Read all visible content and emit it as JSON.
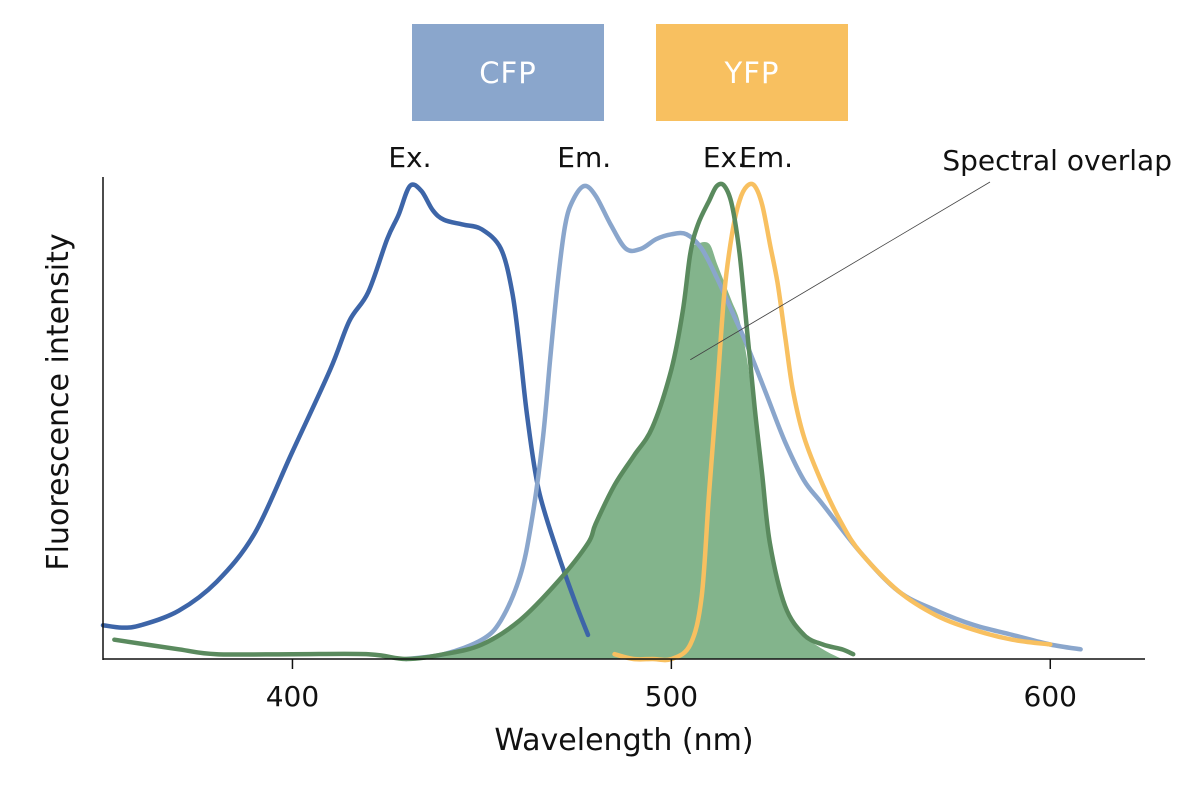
{
  "chart_data": {
    "type": "line",
    "xlabel": "Wavelength (nm)",
    "ylabel": "Fluorescence intensity",
    "xlim": [
      350,
      625
    ],
    "ylim": [
      0,
      1.05
    ],
    "x_ticks": [
      400,
      500,
      600
    ],
    "legend": [
      {
        "label": "CFP",
        "color": "#8aa6cc"
      },
      {
        "label": "YFP",
        "color": "#f8c060"
      }
    ],
    "peak_labels": [
      {
        "text": "Ex.",
        "x": 431
      },
      {
        "text": "Em.",
        "x": 477
      },
      {
        "text": "Ex.",
        "x": 514
      },
      {
        "text": "Em.",
        "x": 525
      }
    ],
    "annotation": {
      "text": "Spectral overlap",
      "points_to": [
        505,
        0.62
      ]
    },
    "fill_series": "overlap",
    "series": [
      {
        "key": "cfp_ex",
        "color": "#3d65a8",
        "x": [
          350,
          355,
          360,
          370,
          380,
          390,
          400,
          410,
          415,
          420,
          425,
          428,
          431,
          434,
          437,
          440,
          445,
          450,
          455,
          458,
          460,
          462,
          465,
          470,
          475,
          478
        ],
        "y": [
          0.07,
          0.065,
          0.07,
          0.1,
          0.16,
          0.26,
          0.43,
          0.6,
          0.7,
          0.76,
          0.87,
          0.92,
          0.98,
          0.97,
          0.93,
          0.91,
          0.9,
          0.89,
          0.85,
          0.76,
          0.64,
          0.5,
          0.35,
          0.22,
          0.11,
          0.05
        ]
      },
      {
        "key": "cfp_em",
        "color": "#8aa6cc",
        "x": [
          430,
          440,
          450,
          455,
          460,
          463,
          466,
          468,
          470,
          472,
          474,
          477,
          480,
          484,
          488,
          492,
          496,
          500,
          504,
          508,
          512,
          516,
          520,
          525,
          530,
          535,
          540,
          550,
          560,
          570,
          580,
          590,
          600,
          608
        ],
        "y": [
          0.0,
          0.01,
          0.04,
          0.08,
          0.17,
          0.28,
          0.45,
          0.62,
          0.78,
          0.9,
          0.95,
          0.98,
          0.96,
          0.9,
          0.85,
          0.85,
          0.87,
          0.88,
          0.88,
          0.85,
          0.79,
          0.72,
          0.65,
          0.55,
          0.45,
          0.37,
          0.32,
          0.22,
          0.14,
          0.1,
          0.07,
          0.05,
          0.03,
          0.02
        ]
      },
      {
        "key": "yfp_ex",
        "color": "#5a8a5e",
        "x": [
          353,
          370,
          380,
          400,
          420,
          430,
          440,
          450,
          460,
          470,
          478,
          480,
          485,
          490,
          495,
          500,
          503,
          505,
          507,
          510,
          512,
          514,
          516,
          518,
          520,
          522,
          524,
          526,
          530,
          535,
          540,
          545,
          548
        ],
        "y": [
          0.04,
          0.02,
          0.01,
          0.01,
          0.01,
          0.0,
          0.01,
          0.03,
          0.08,
          0.16,
          0.24,
          0.28,
          0.36,
          0.42,
          0.48,
          0.6,
          0.72,
          0.84,
          0.9,
          0.95,
          0.98,
          0.98,
          0.94,
          0.84,
          0.68,
          0.52,
          0.38,
          0.24,
          0.11,
          0.05,
          0.03,
          0.02,
          0.01
        ]
      },
      {
        "key": "yfp_em",
        "color": "#f8c060",
        "x": [
          485,
          490,
          495,
          500,
          505,
          508,
          510,
          512,
          514,
          516,
          518,
          520,
          522,
          524,
          526,
          528,
          530,
          532,
          535,
          540,
          545,
          550,
          560,
          570,
          580,
          590,
          600
        ],
        "y": [
          0.01,
          0.0,
          0.0,
          0.0,
          0.03,
          0.13,
          0.35,
          0.55,
          0.76,
          0.88,
          0.95,
          0.98,
          0.98,
          0.94,
          0.86,
          0.78,
          0.67,
          0.56,
          0.46,
          0.36,
          0.28,
          0.22,
          0.14,
          0.09,
          0.06,
          0.04,
          0.03
        ]
      },
      {
        "key": "overlap",
        "color": "#83b48c",
        "x": [
          420,
          430,
          440,
          450,
          460,
          470,
          478,
          480,
          485,
          490,
          495,
          500,
          503,
          505,
          507,
          510,
          512,
          514,
          516,
          518,
          520,
          522,
          524,
          526,
          530,
          535,
          540,
          545
        ],
        "y": [
          0.0,
          0.0,
          0.01,
          0.03,
          0.08,
          0.16,
          0.24,
          0.28,
          0.36,
          0.42,
          0.48,
          0.6,
          0.72,
          0.84,
          0.86,
          0.86,
          0.82,
          0.78,
          0.74,
          0.7,
          0.62,
          0.5,
          0.36,
          0.24,
          0.11,
          0.05,
          0.02,
          0.0
        ]
      }
    ]
  }
}
